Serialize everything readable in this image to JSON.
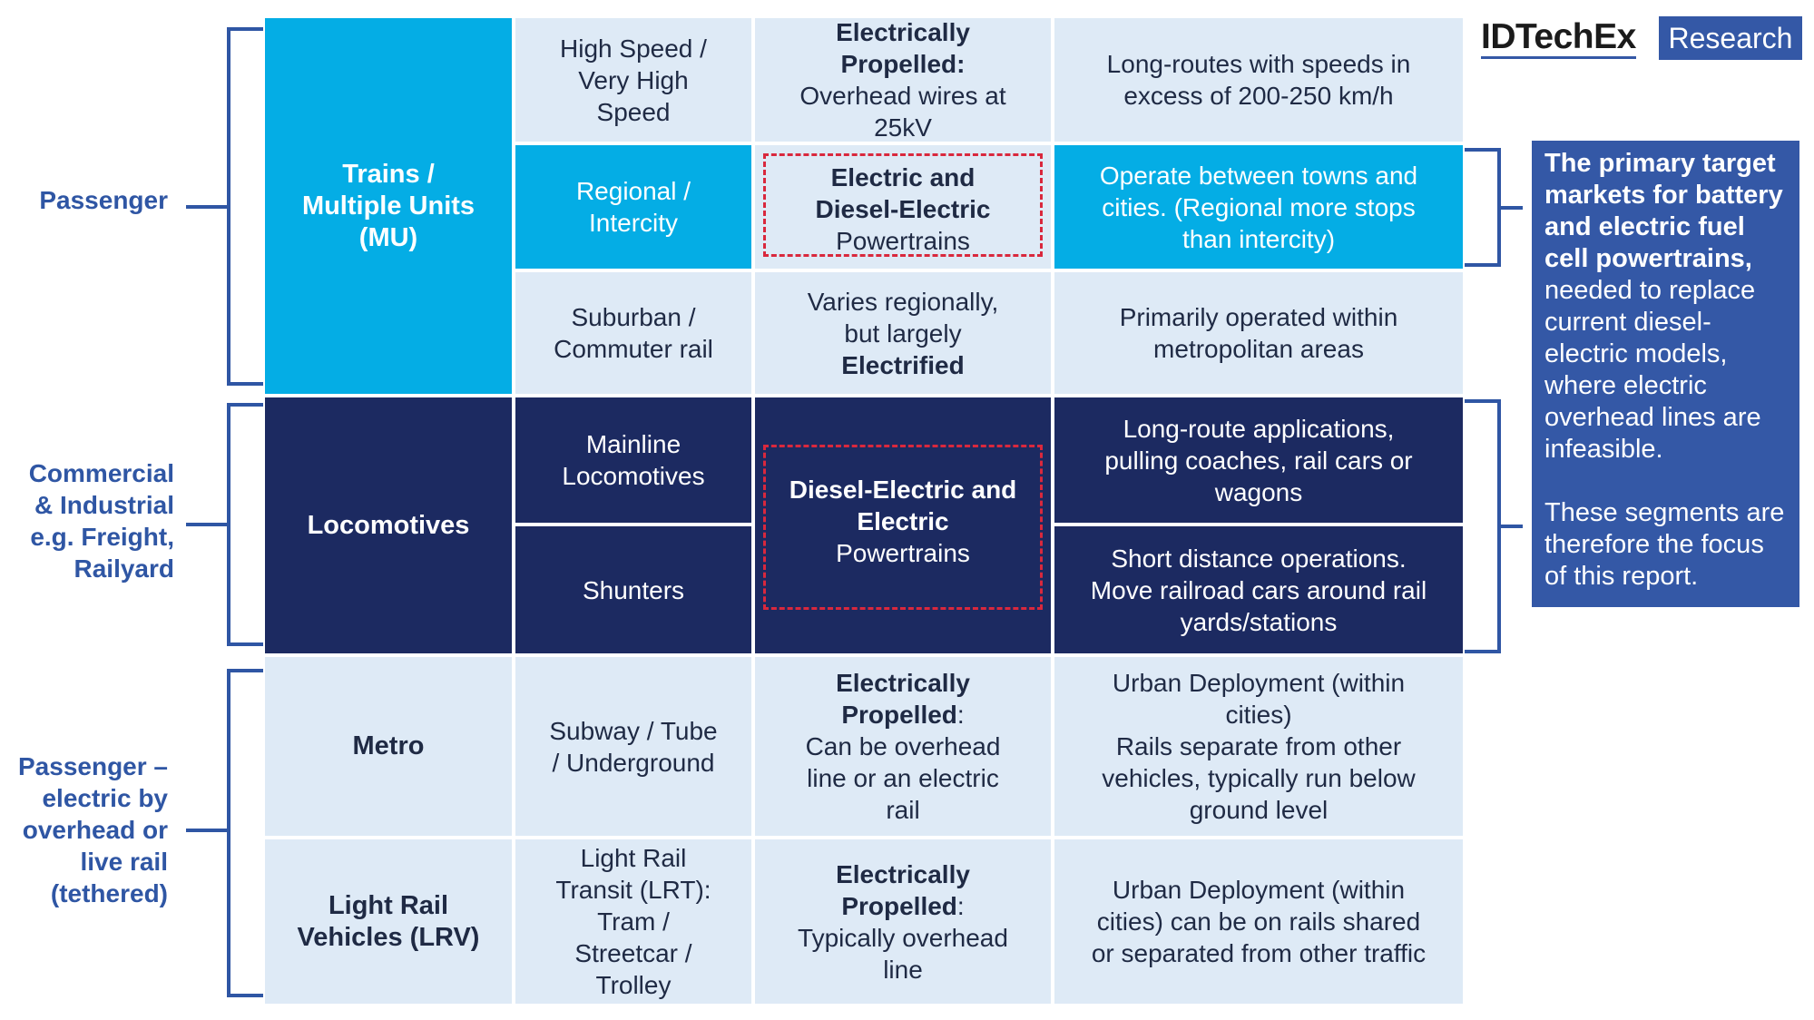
{
  "brand": {
    "name": "IDTechEx",
    "tag": "Research"
  },
  "groups": {
    "passenger": [
      "Passenger"
    ],
    "commercial": [
      "Commercial",
      "& Industrial",
      "e.g. Freight,",
      "Railyard"
    ],
    "tethered": [
      "Passenger –",
      "electric by",
      "overhead or",
      "live rail",
      "(tethered)"
    ]
  },
  "categories": {
    "trains": [
      "Trains /",
      "Multiple Units",
      "(MU)"
    ],
    "locomotives": [
      "Locomotives"
    ],
    "metro": [
      "Metro"
    ],
    "lrv": [
      "Light Rail",
      "Vehicles (LRV)"
    ]
  },
  "subtypes": {
    "high_speed": [
      "High Speed /",
      "Very High",
      "Speed"
    ],
    "regional": [
      "Regional /",
      "Intercity"
    ],
    "suburban": [
      "Suburban /",
      "Commuter rail"
    ],
    "mainline": [
      "Mainline",
      "Locomotives"
    ],
    "shunters": [
      "Shunters"
    ],
    "subway": [
      "Subway / Tube",
      "/ Underground"
    ],
    "lrt": [
      "Light Rail",
      "Transit (LRT):",
      "Tram /",
      "Streetcar /",
      "Trolley"
    ]
  },
  "powertrains": {
    "high_speed": {
      "bold": [
        "Electrically",
        "Propelled:"
      ],
      "normal": [
        "Overhead wires at",
        "25kV"
      ]
    },
    "regional": {
      "bold": [
        "Electric and",
        "Diesel-Electric"
      ],
      "normal": [
        "Powertrains"
      ]
    },
    "suburban": {
      "normal": [
        "Varies regionally,",
        "but largely"
      ],
      "bold": [
        "Electrified"
      ]
    },
    "locomotive": {
      "bold": [
        "Diesel-Electric and",
        "Electric"
      ],
      "normal": [
        "Powertrains"
      ]
    },
    "metro": {
      "bold": [
        "Electrically",
        "Propelled"
      ],
      "colon": ":",
      "normal": [
        "Can be overhead",
        "line or an electric",
        "rail"
      ]
    },
    "lrv": {
      "bold": [
        "Electrically",
        "Propelled"
      ],
      "colon": ":",
      "normal": [
        "Typically overhead",
        "line"
      ]
    }
  },
  "descriptions": {
    "high_speed": [
      "Long-routes with speeds in",
      "excess of 200-250 km/h"
    ],
    "regional": [
      "Operate between towns and",
      "cities. (Regional more stops",
      "than intercity)"
    ],
    "suburban": [
      "Primarily operated within",
      "metropolitan areas"
    ],
    "mainline": [
      "Long-route applications,",
      "pulling coaches, rail cars or",
      "wagons"
    ],
    "shunters": [
      "Short distance operations.",
      "Move railroad cars around rail",
      "yards/stations"
    ],
    "metro": [
      "Urban Deployment (within",
      "cities)",
      "Rails separate from other",
      "vehicles, typically run below",
      "ground level"
    ],
    "lrv": [
      "Urban Deployment (within",
      "cities) can be on rails shared",
      "or separated from other traffic"
    ]
  },
  "note": {
    "bold": "The primary target markets for battery and electric fuel cell powertrains,",
    "normal": " needed to replace current diesel-electric models, where electric overhead lines are infeasible.",
    "second": "These segments are therefore the focus of this report."
  },
  "colors": {
    "light": "#deeaf6",
    "cyan": "#04ade5",
    "navy": "#1c2a61",
    "accent": "#2f56a4",
    "dashed": "#d9283d"
  }
}
